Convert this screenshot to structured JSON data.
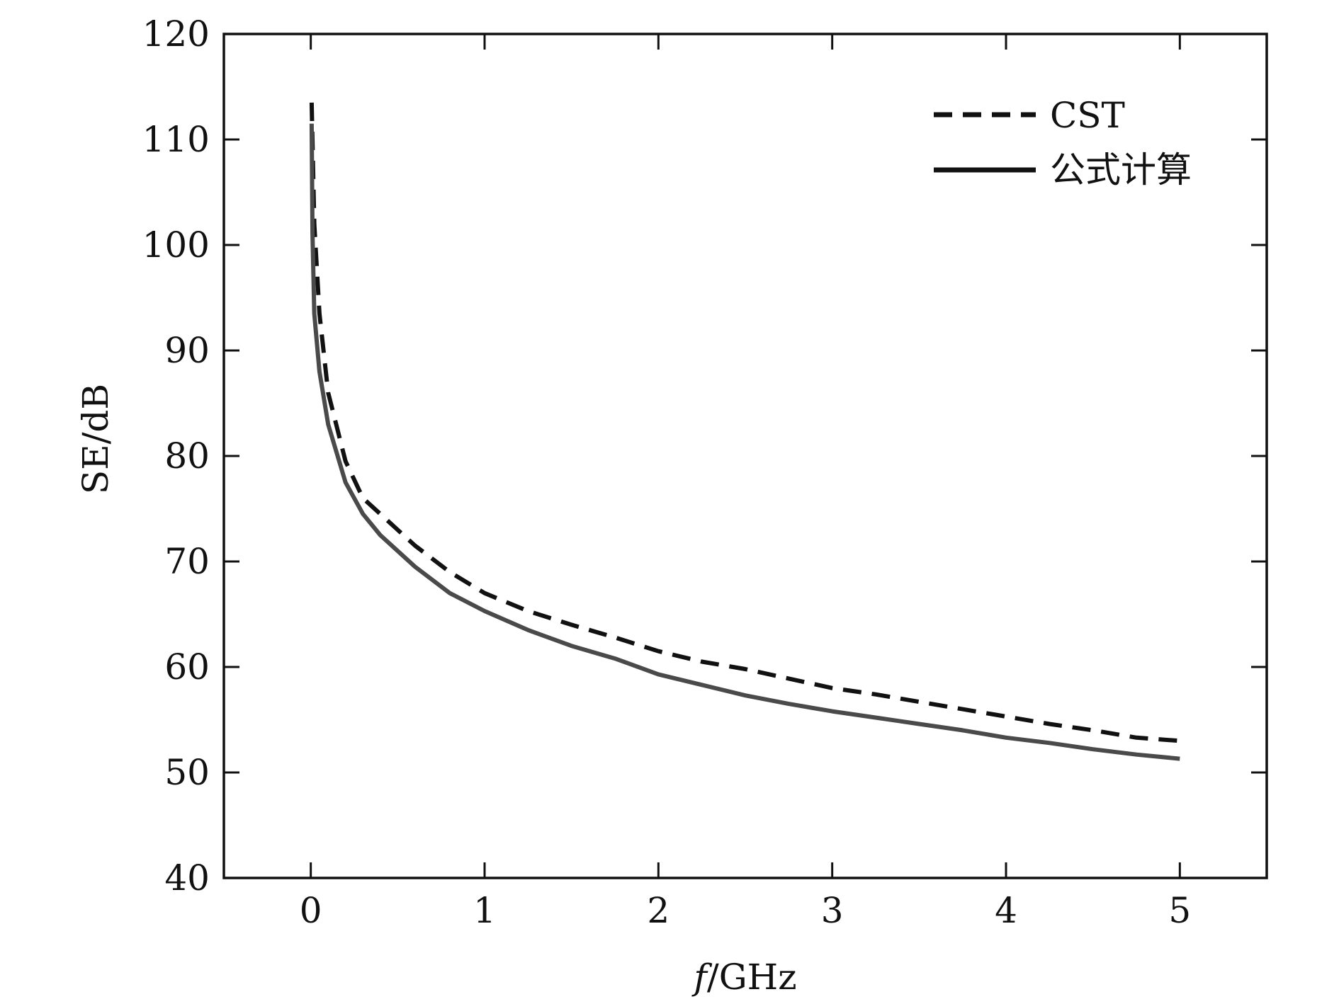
{
  "chart_data": {
    "type": "line",
    "xlabel_italic": "f",
    "xlabel_rest": "/GHz",
    "ylabel": "SE/dB",
    "xlim": [
      -0.5,
      5.5
    ],
    "ylim": [
      40,
      120
    ],
    "xticks": [
      0,
      1,
      2,
      3,
      4,
      5
    ],
    "yticks": [
      40,
      50,
      60,
      70,
      80,
      90,
      100,
      110,
      120
    ],
    "legend_position": "top-right",
    "series": [
      {
        "name": "CST",
        "style": "dashed",
        "color": "#111111",
        "x": [
          0.005,
          0.02,
          0.05,
          0.1,
          0.2,
          0.3,
          0.4,
          0.5,
          0.6,
          0.8,
          1.0,
          1.25,
          1.5,
          1.75,
          2.0,
          2.25,
          2.5,
          2.75,
          3.0,
          3.25,
          3.5,
          3.75,
          4.0,
          4.25,
          4.5,
          4.75,
          5.0
        ],
        "y": [
          113.5,
          102.0,
          93.5,
          86.0,
          79.5,
          76.0,
          74.5,
          73.0,
          71.5,
          69.0,
          67.0,
          65.3,
          64.0,
          62.8,
          61.5,
          60.5,
          59.8,
          58.9,
          58.0,
          57.4,
          56.7,
          56.0,
          55.3,
          54.6,
          54.0,
          53.3,
          53.0
        ]
      },
      {
        "name": "公式计算",
        "style": "solid",
        "color": "#4a4a4a",
        "x": [
          0.005,
          0.01,
          0.02,
          0.05,
          0.1,
          0.2,
          0.3,
          0.4,
          0.5,
          0.6,
          0.8,
          1.0,
          1.25,
          1.5,
          1.75,
          2.0,
          2.25,
          2.5,
          2.75,
          3.0,
          3.25,
          3.5,
          3.75,
          4.0,
          4.25,
          4.5,
          4.75,
          5.0
        ],
        "y": [
          111.5,
          101.0,
          93.5,
          88.0,
          83.0,
          77.5,
          74.5,
          72.5,
          71.0,
          69.5,
          67.0,
          65.3,
          63.5,
          62.0,
          60.8,
          59.3,
          58.3,
          57.3,
          56.5,
          55.8,
          55.2,
          54.6,
          54.0,
          53.3,
          52.8,
          52.2,
          51.7,
          51.3
        ]
      }
    ]
  }
}
